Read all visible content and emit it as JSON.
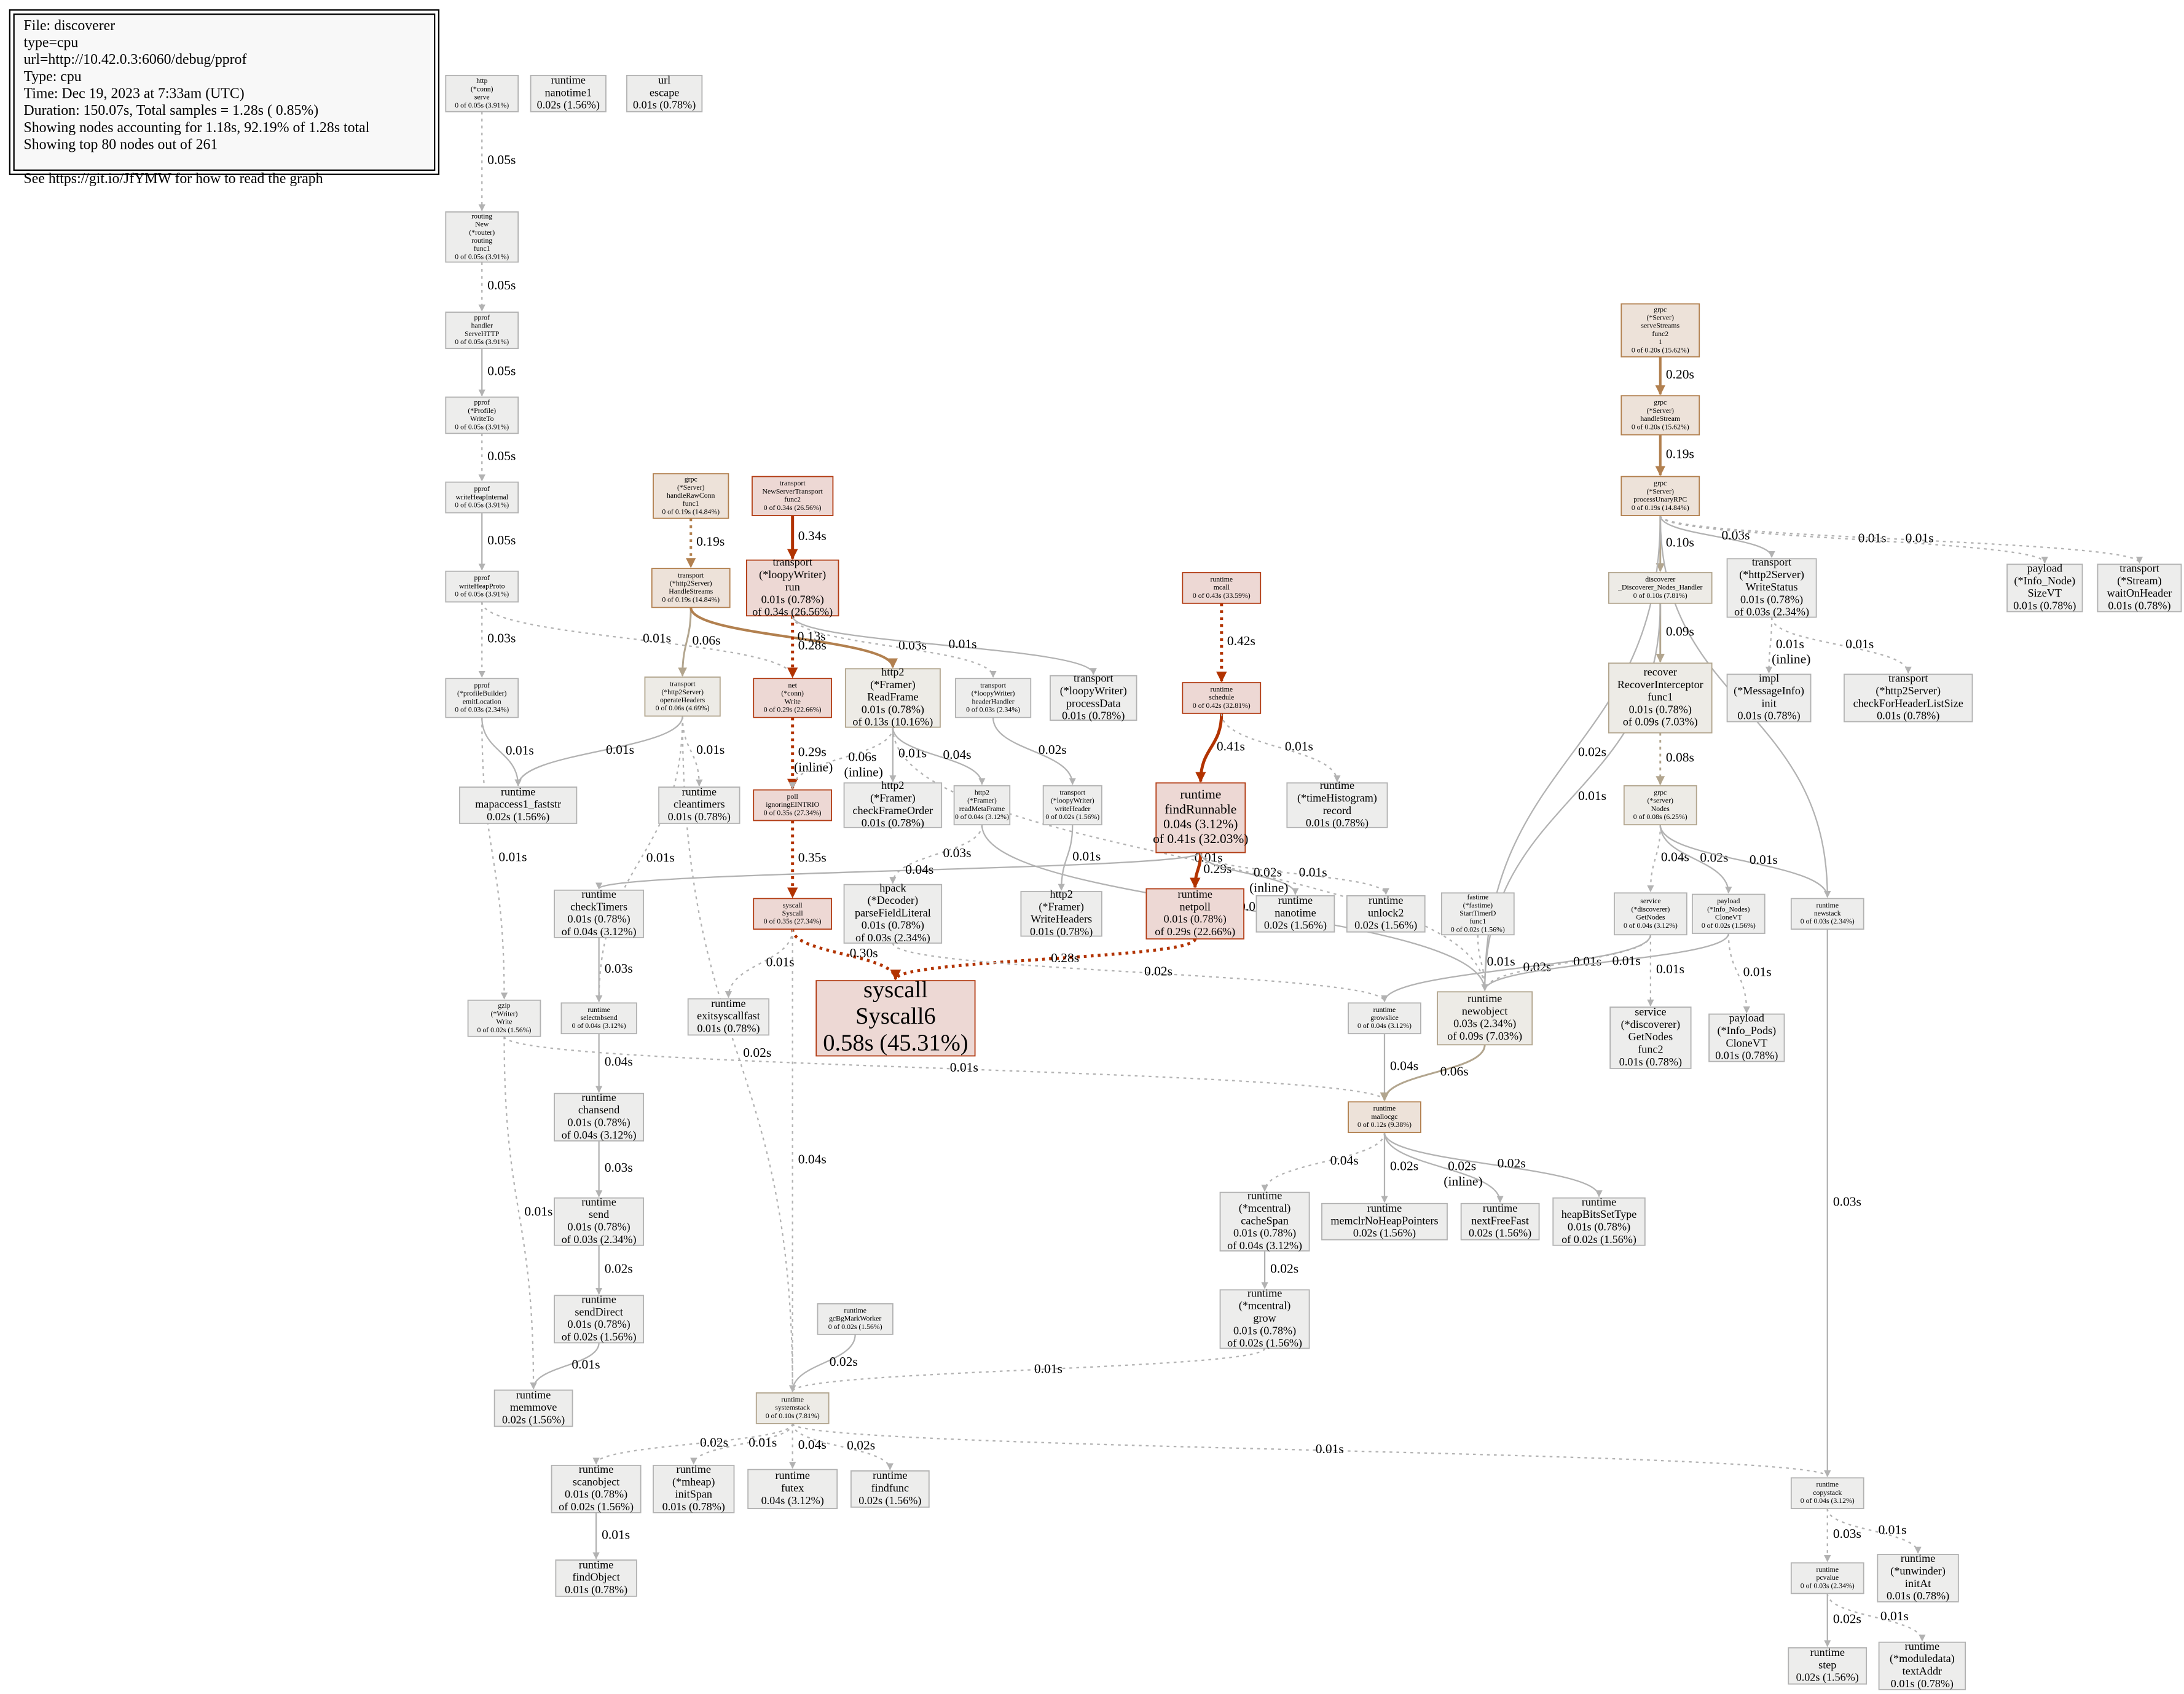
{
  "legend": [
    "File: discoverer",
    "type=cpu",
    "url=http://10.42.0.3:6060/debug/pprof",
    "Type: cpu",
    "Time: Dec 19, 2023 at 7:33am (UTC)",
    "Duration: 150.07s, Total samples = 1.28s ( 0.85%)",
    "Showing nodes accounting for 1.18s, 92.19% of 1.28s total",
    "Showing top 80 nodes out of 261",
    "See https://git.io/JfYMW for how to read the graph"
  ],
  "nodes": [
    {
      "lines": [
        "http",
        "(*conn)",
        "serve",
        "0 of 0.05s (3.91%)"
      ]
    },
    {
      "lines": [
        "runtime",
        "nanotime1",
        "0.02s (1.56%)"
      ]
    },
    {
      "lines": [
        "url",
        "escape",
        "0.01s (0.78%)"
      ]
    },
    {
      "lines": [
        "routing",
        "New",
        "(*router)",
        "routing",
        "func1",
        "0 of 0.05s (3.91%)"
      ]
    },
    {
      "lines": [
        "pprof",
        "handler",
        "ServeHTTP",
        "0 of 0.05s (3.91%)"
      ]
    },
    {
      "lines": [
        "pprof",
        "(*Profile)",
        "WriteTo",
        "0 of 0.05s (3.91%)"
      ]
    },
    {
      "lines": [
        "pprof",
        "writeHeapInternal",
        "0 of 0.05s (3.91%)"
      ]
    },
    {
      "lines": [
        "pprof",
        "writeHeapProto",
        "0 of 0.05s (3.91%)"
      ]
    },
    {
      "lines": [
        "pprof",
        "(*profileBuilder)",
        "emitLocation",
        "0 of 0.03s (2.34%)"
      ]
    },
    {
      "lines": [
        "grpc",
        "(*Server)",
        "handleRawConn",
        "func1",
        "0 of 0.19s (14.84%)"
      ]
    },
    {
      "lines": [
        "transport",
        "NewServerTransport",
        "func2",
        "0 of 0.34s (26.56%)"
      ]
    },
    {
      "lines": [
        "transport",
        "(*http2Server)",
        "HandleStreams",
        "0 of 0.19s (14.84%)"
      ]
    },
    {
      "lines": [
        "transport",
        "(*loopyWriter)",
        "run",
        "0.01s (0.78%)",
        "of 0.34s (26.56%)"
      ]
    },
    {
      "lines": [
        "transport",
        "(*http2Server)",
        "operateHeaders",
        "0 of 0.06s (4.69%)"
      ]
    },
    {
      "lines": [
        "net",
        "(*conn)",
        "Write",
        "0 of 0.29s (22.66%)"
      ]
    },
    {
      "lines": [
        "http2",
        "(*Framer)",
        "ReadFrame",
        "0.01s (0.78%)",
        "of 0.13s (10.16%)"
      ]
    },
    {
      "lines": [
        "transport",
        "(*loopyWriter)",
        "headerHandler",
        "0 of 0.03s (2.34%)"
      ]
    },
    {
      "lines": [
        "transport",
        "(*loopyWriter)",
        "processData",
        "0.01s (0.78%)"
      ]
    },
    {
      "lines": [
        "runtime",
        "mapaccess1_faststr",
        "0.02s (1.56%)"
      ]
    },
    {
      "lines": [
        "runtime",
        "cleantimers",
        "0.01s (0.78%)"
      ]
    },
    {
      "lines": [
        "poll",
        "ignoringEINTRIO",
        "0 of 0.35s (27.34%)"
      ]
    },
    {
      "lines": [
        "http2",
        "(*Framer)",
        "checkFrameOrder",
        "0.01s (0.78%)"
      ]
    },
    {
      "lines": [
        "http2",
        "(*Framer)",
        "readMetaFrame",
        "0 of 0.04s (3.12%)"
      ]
    },
    {
      "lines": [
        "transport",
        "(*loopyWriter)",
        "writeHeader",
        "0 of 0.02s (1.56%)"
      ]
    },
    {
      "lines": [
        "runtime",
        "(*timeHistogram)",
        "record",
        "0.01s (0.78%)"
      ]
    },
    {
      "lines": [
        "runtime",
        "findRunnable",
        "0.04s (3.12%)",
        "of 0.41s (32.03%)"
      ]
    },
    {
      "lines": [
        "runtime",
        "mcall",
        "0 of 0.43s (33.59%)"
      ]
    },
    {
      "lines": [
        "runtime",
        "schedule",
        "0 of 0.42s (32.81%)"
      ]
    },
    {
      "lines": [
        "runtime",
        "checkTimers",
        "0.01s (0.78%)",
        "of 0.04s (3.12%)"
      ]
    },
    {
      "lines": [
        "syscall",
        "Syscall",
        "0 of 0.35s (27.34%)"
      ]
    },
    {
      "lines": [
        "hpack",
        "(*Decoder)",
        "parseFieldLiteral",
        "0.01s (0.78%)",
        "of 0.03s (2.34%)"
      ]
    },
    {
      "lines": [
        "http2",
        "(*Framer)",
        "WriteHeaders",
        "0.01s (0.78%)"
      ]
    },
    {
      "lines": [
        "runtime",
        "netpoll",
        "0.01s (0.78%)",
        "of 0.29s (22.66%)"
      ]
    },
    {
      "lines": [
        "runtime",
        "nanotime",
        "0.02s (1.56%)"
      ]
    },
    {
      "lines": [
        "runtime",
        "unlock2",
        "0.02s (1.56%)"
      ]
    },
    {
      "lines": [
        "fastime",
        "(*fastime)",
        "StartTimerD",
        "func1",
        "0 of 0.02s (1.56%)"
      ]
    },
    {
      "lines": [
        "runtime",
        "exitsyscallfast",
        "0.01s (0.78%)"
      ]
    },
    {
      "lines": [
        "syscall",
        "Syscall6",
        "0.58s (45.31%)"
      ]
    },
    {
      "lines": [
        "runtime",
        "selectnbsend",
        "0 of 0.04s (3.12%)"
      ]
    },
    {
      "lines": [
        "gzip",
        "(*Writer)",
        "Write",
        "0 of 0.02s (1.56%)"
      ]
    },
    {
      "lines": [
        "runtime",
        "growslice",
        "0 of 0.04s (3.12%)"
      ]
    },
    {
      "lines": [
        "runtime",
        "newobject",
        "0.03s (2.34%)",
        "of 0.09s (7.03%)"
      ]
    },
    {
      "lines": [
        "runtime",
        "chansend",
        "0.01s (0.78%)",
        "of 0.04s (3.12%)"
      ]
    },
    {
      "lines": [
        "runtime",
        "mallocgc",
        "0 of 0.12s (9.38%)"
      ]
    },
    {
      "lines": [
        "runtime",
        "send",
        "0.01s (0.78%)",
        "of 0.03s (2.34%)"
      ]
    },
    {
      "lines": [
        "runtime",
        "(*mcentral)",
        "cacheSpan",
        "0.01s (0.78%)",
        "of 0.04s (3.12%)"
      ]
    },
    {
      "lines": [
        "runtime",
        "memclrNoHeapPointers",
        "0.02s (1.56%)"
      ]
    },
    {
      "lines": [
        "runtime",
        "nextFreeFast",
        "0.02s (1.56%)"
      ]
    },
    {
      "lines": [
        "runtime",
        "heapBitsSetType",
        "0.01s (0.78%)",
        "of 0.02s (1.56%)"
      ]
    },
    {
      "lines": [
        "runtime",
        "sendDirect",
        "0.01s (0.78%)",
        "of 0.02s (1.56%)"
      ]
    },
    {
      "lines": [
        "runtime",
        "(*mcentral)",
        "grow",
        "0.01s (0.78%)",
        "of 0.02s (1.56%)"
      ]
    },
    {
      "lines": [
        "runtime",
        "gcBgMarkWorker",
        "0 of 0.02s (1.56%)"
      ]
    },
    {
      "lines": [
        "runtime",
        "memmove",
        "0.02s (1.56%)"
      ]
    },
    {
      "lines": [
        "runtime",
        "systemstack",
        "0 of 0.10s (7.81%)"
      ]
    },
    {
      "lines": [
        "runtime",
        "scanobject",
        "0.01s (0.78%)",
        "of 0.02s (1.56%)"
      ]
    },
    {
      "lines": [
        "runtime",
        "(*mheap)",
        "initSpan",
        "0.01s (0.78%)"
      ]
    },
    {
      "lines": [
        "runtime",
        "futex",
        "0.04s (3.12%)"
      ]
    },
    {
      "lines": [
        "runtime",
        "findfunc",
        "0.02s (1.56%)"
      ]
    },
    {
      "lines": [
        "runtime",
        "findObject",
        "0.01s (0.78%)"
      ]
    },
    {
      "lines": [
        "grpc",
        "(*Server)",
        "serveStreams",
        "func2",
        "1",
        "0 of 0.20s (15.62%)"
      ]
    },
    {
      "lines": [
        "grpc",
        "(*Server)",
        "handleStream",
        "0 of 0.20s (15.62%)"
      ]
    },
    {
      "lines": [
        "grpc",
        "(*Server)",
        "processUnaryRPC",
        "0 of 0.19s (14.84%)"
      ]
    },
    {
      "lines": [
        "discoverer",
        "_Discoverer_Nodes_Handler",
        "0 of 0.10s (7.81%)"
      ]
    },
    {
      "lines": [
        "transport",
        "(*http2Server)",
        "WriteStatus",
        "0.01s (0.78%)",
        "of 0.03s (2.34%)"
      ]
    },
    {
      "lines": [
        "payload",
        "(*Info_Node)",
        "SizeVT",
        "0.01s (0.78%)"
      ]
    },
    {
      "lines": [
        "transport",
        "(*Stream)",
        "waitOnHeader",
        "0.01s (0.78%)"
      ]
    },
    {
      "lines": [
        "recover",
        "RecoverInterceptor",
        "func1",
        "0.01s (0.78%)",
        "of 0.09s (7.03%)"
      ]
    },
    {
      "lines": [
        "impl",
        "(*MessageInfo)",
        "init",
        "0.01s (0.78%)"
      ]
    },
    {
      "lines": [
        "transport",
        "(*http2Server)",
        "checkForHeaderListSize",
        "0.01s (0.78%)"
      ]
    },
    {
      "lines": [
        "grpc",
        "(*server)",
        "Nodes",
        "0 of 0.08s (6.25%)"
      ]
    },
    {
      "lines": [
        "service",
        "(*discoverer)",
        "GetNodes",
        "0 of 0.04s (3.12%)"
      ]
    },
    {
      "lines": [
        "payload",
        "(*Info_Nodes)",
        "CloneVT",
        "0 of 0.02s (1.56%)"
      ]
    },
    {
      "lines": [
        "runtime",
        "newstack",
        "0 of 0.03s (2.34%)"
      ]
    },
    {
      "lines": [
        "service",
        "(*discoverer)",
        "GetNodes",
        "func2",
        "0.01s (0.78%)"
      ]
    },
    {
      "lines": [
        "payload",
        "(*Info_Pods)",
        "CloneVT",
        "0.01s (0.78%)"
      ]
    },
    {
      "lines": [
        "runtime",
        "copystack",
        "0 of 0.04s (3.12%)"
      ]
    },
    {
      "lines": [
        "runtime",
        "pcvalue",
        "0 of 0.03s (2.34%)"
      ]
    },
    {
      "lines": [
        "runtime",
        "(*unwinder)",
        "initAt",
        "0.01s (0.78%)"
      ]
    },
    {
      "lines": [
        "runtime",
        "step",
        "0.02s (1.56%)"
      ]
    },
    {
      "lines": [
        "runtime",
        "(*moduledata)",
        "textAddr",
        "0.01s (0.78%)"
      ]
    }
  ],
  "edges": [
    {
      "label": "0.05s"
    },
    {
      "label": "0.05s"
    },
    {
      "label": "0.05s"
    },
    {
      "label": "0.05s"
    },
    {
      "label": "0.05s"
    },
    {
      "label": "0.03s"
    },
    {
      "label": "0.01s"
    },
    {
      "label": "0.01s"
    },
    {
      "label": "0.01s"
    },
    {
      "label": "0.01s"
    },
    {
      "label": "0.01s"
    },
    {
      "label": "0.01s"
    },
    {
      "label": "0.02s"
    },
    {
      "label": "0.19s"
    },
    {
      "label": "0.06s"
    },
    {
      "label": "0.13s"
    },
    {
      "label": "0.34s"
    },
    {
      "label": "0.28s"
    },
    {
      "label": "0.03s"
    },
    {
      "label": "0.01s"
    },
    {
      "label": "0.29s",
      "note": "(inline)"
    },
    {
      "label": "0.06s",
      "note": "(inline)"
    },
    {
      "label": "0.01s"
    },
    {
      "label": "0.04s"
    },
    {
      "label": "0.01s"
    },
    {
      "label": "0.02s"
    },
    {
      "label": "0.03s"
    },
    {
      "label": "0.01s"
    },
    {
      "label": "0.01s"
    },
    {
      "label": "0.42s"
    },
    {
      "label": "0.41s"
    },
    {
      "label": "0.01s"
    },
    {
      "label": "0.04s"
    },
    {
      "label": "0.29s"
    },
    {
      "label": "0.02s",
      "note": "(inline)"
    },
    {
      "label": "0.01s"
    },
    {
      "label": "0.35s"
    },
    {
      "label": "0.01s"
    },
    {
      "label": "0.30s"
    },
    {
      "label": "0.04s"
    },
    {
      "label": "0.28s"
    },
    {
      "label": "0.02s"
    },
    {
      "label": "0.01s"
    },
    {
      "label": "0.03s"
    },
    {
      "label": "0.04s"
    },
    {
      "label": "0.01s"
    },
    {
      "label": "0.01s"
    },
    {
      "label": "0.03s"
    },
    {
      "label": "0.02s"
    },
    {
      "label": "0.01s"
    },
    {
      "label": "0.04s"
    },
    {
      "label": "0.06s"
    },
    {
      "label": "0.04s"
    },
    {
      "label": "0.02s"
    },
    {
      "label": "0.02s",
      "note": "(inline)"
    },
    {
      "label": "0.02s"
    },
    {
      "label": "0.02s"
    },
    {
      "label": "0.01s"
    },
    {
      "label": "0.02s"
    },
    {
      "label": "0.02s"
    },
    {
      "label": "0.01s"
    },
    {
      "label": "0.04s"
    },
    {
      "label": "0.02s"
    },
    {
      "label": "0.01s"
    },
    {
      "label": "0.01s"
    },
    {
      "label": "0.20s"
    },
    {
      "label": "0.19s"
    },
    {
      "label": "0.10s"
    },
    {
      "label": "0.03s"
    },
    {
      "label": "0.01s"
    },
    {
      "label": "0.01s"
    },
    {
      "label": "0.02s"
    },
    {
      "label": "0.02s"
    },
    {
      "label": "0.09s"
    },
    {
      "label": "0.01s"
    },
    {
      "label": "0.01s",
      "note": "(inline)"
    },
    {
      "label": "0.01s"
    },
    {
      "label": "0.08s"
    },
    {
      "label": "0.04s"
    },
    {
      "label": "0.02s"
    },
    {
      "label": "0.01s"
    },
    {
      "label": "0.02s"
    },
    {
      "label": "0.01s"
    },
    {
      "label": "0.01s"
    },
    {
      "label": "0.01s"
    },
    {
      "label": "0.01s"
    },
    {
      "label": "0.03s"
    },
    {
      "label": "0.03s"
    },
    {
      "label": "0.01s"
    },
    {
      "label": "0.02s"
    },
    {
      "label": "0.01s"
    }
  ]
}
